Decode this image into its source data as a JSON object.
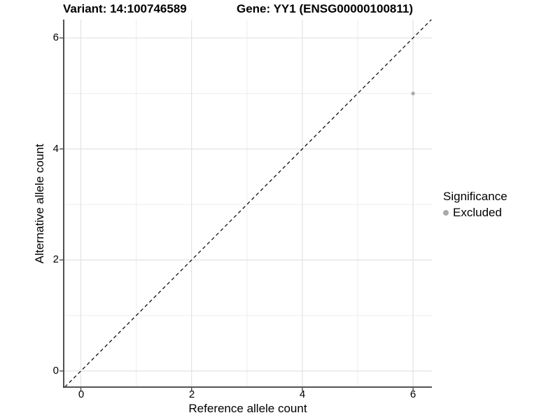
{
  "chart_data": {
    "type": "scatter",
    "title_variant": "Variant: 14:100746589",
    "title_gene": "Gene: YY1 (ENSG00000100811)",
    "xlabel": "Reference allele count",
    "ylabel": "Alternative allele count",
    "xlim": [
      -0.31,
      6.34
    ],
    "ylim": [
      -0.29,
      6.33
    ],
    "xticks": [
      0,
      2,
      4,
      6
    ],
    "yticks": [
      0,
      2,
      4,
      6
    ],
    "grid": {
      "major": [
        0,
        2,
        4,
        6
      ],
      "minor": [
        1,
        3,
        5
      ]
    },
    "series": [
      {
        "name": "Excluded",
        "color": "#a9a9a9",
        "points": [
          {
            "x": 6,
            "y": 5
          }
        ]
      }
    ],
    "point_radius": 2.6,
    "reference_line": {
      "type": "diagonal",
      "slope": 1,
      "intercept": 0,
      "style": "dashed",
      "color": "#111111"
    },
    "legend": {
      "title": "Significance",
      "position": "right",
      "items": [
        {
          "label": "Excluded",
          "color": "#a9a9a9"
        }
      ]
    },
    "colors": {
      "background": "#ffffff",
      "grid_major": "#e2e2e2",
      "grid_minor": "#ededed",
      "axis_line": "#3c3c3c",
      "tick": "#333333",
      "text": "#000000"
    }
  }
}
